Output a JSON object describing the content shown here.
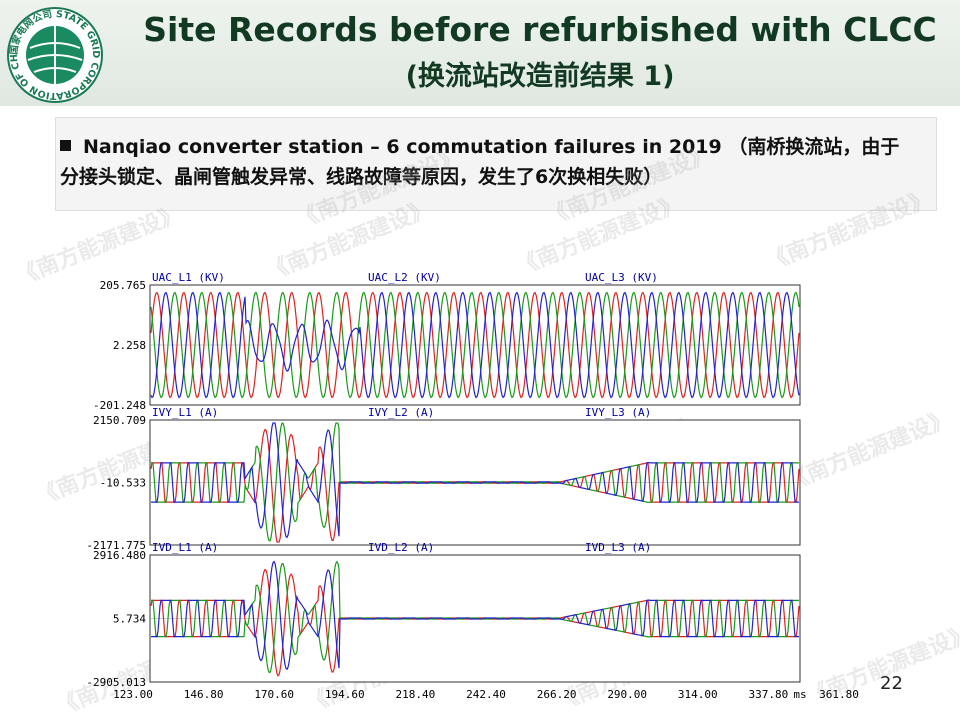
{
  "header": {
    "title": "Site Records before refurbished with CLCC",
    "subtitle": "(换流站改造前结果 1)",
    "logo_text": "国家电网公司 STATE GRID CORPORATION OF CHINA"
  },
  "bullet": "Nanqiao converter station – 6 commutation failures in 2019 （南桥换流站，由于分接头锁定、晶闸管触发异常、线路故障等原因，发生了6次换相失败）",
  "panels": [
    {
      "channels": [
        "UAC_L1 (KV)",
        "UAC_L2 (KV)",
        "UAC_L3 (KV)"
      ],
      "axis_labels": [
        "205.765",
        "2.258",
        "-201.248"
      ]
    },
    {
      "channels": [
        "IVY_L1 (A)",
        "IVY_L2 (A)",
        "IVY_L3 (A)"
      ],
      "axis_labels": [
        "2150.709",
        "-10.533",
        "-2171.775"
      ]
    },
    {
      "channels": [
        "IVD_L1 (A)",
        "IVD_L2 (A)",
        "IVD_L3 (A)"
      ],
      "axis_labels": [
        "2916.480",
        "5.734",
        "-2905.013"
      ]
    }
  ],
  "x_axis_labels": [
    "123.00",
    "146.80",
    "170.60",
    "194.60",
    "218.40",
    "242.40",
    "266.20",
    "290.00",
    "314.00",
    "337.80",
    "361.80",
    "ms"
  ],
  "watermark": "《南方能源建设》",
  "page_number": "22"
}
